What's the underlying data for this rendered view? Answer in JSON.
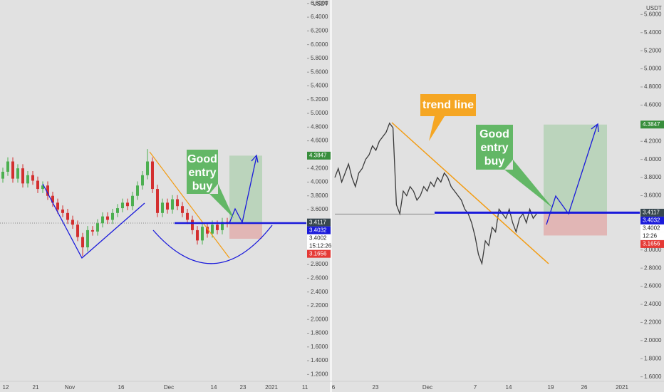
{
  "chart_data": [
    {
      "type": "candlestick",
      "axis_unit": "USDT",
      "open": [
        4.05,
        4.15,
        4.3,
        4.05,
        4.2,
        3.98,
        4.1,
        4.02,
        3.9,
        3.95,
        3.8,
        3.7,
        3.6,
        3.55,
        3.45,
        3.38,
        3.2,
        3.05,
        3.3,
        3.28,
        3.4,
        3.5,
        3.45,
        3.55,
        3.62,
        3.7,
        3.65,
        3.8,
        3.95,
        4.1,
        4.3,
        3.9,
        3.55,
        3.7,
        3.6,
        3.75,
        3.65,
        3.55,
        3.45,
        3.3,
        3.15,
        3.35,
        3.25,
        3.38,
        3.3,
        3.42
      ],
      "high": [
        4.21,
        4.36,
        4.36,
        4.26,
        4.26,
        4.16,
        4.16,
        4.08,
        4.01,
        4.01,
        3.86,
        3.76,
        3.66,
        3.61,
        3.51,
        3.44,
        3.26,
        3.36,
        3.36,
        3.46,
        3.56,
        3.56,
        3.61,
        3.68,
        3.76,
        3.76,
        3.86,
        4.01,
        4.16,
        4.48,
        4.36,
        3.96,
        3.76,
        3.76,
        3.81,
        3.81,
        3.71,
        3.61,
        3.51,
        3.36,
        3.41,
        3.41,
        3.44,
        3.44,
        3.48,
        3.48
      ],
      "low": [
        3.99,
        4.09,
        3.99,
        3.99,
        3.92,
        3.92,
        3.96,
        3.84,
        3.84,
        3.74,
        3.64,
        3.54,
        3.49,
        3.39,
        3.32,
        3.14,
        2.92,
        2.99,
        3.22,
        3.22,
        3.34,
        3.39,
        3.39,
        3.49,
        3.56,
        3.59,
        3.59,
        3.74,
        3.89,
        4.04,
        3.84,
        3.49,
        3.49,
        3.54,
        3.54,
        3.59,
        3.49,
        3.39,
        3.24,
        3.09,
        3.09,
        3.19,
        3.19,
        3.24,
        3.24,
        3.34
      ],
      "close": [
        4.15,
        4.3,
        4.05,
        4.2,
        3.98,
        4.1,
        4.02,
        3.9,
        3.95,
        3.8,
        3.7,
        3.6,
        3.55,
        3.45,
        3.38,
        3.2,
        3.05,
        3.3,
        3.28,
        3.4,
        3.5,
        3.45,
        3.55,
        3.62,
        3.7,
        3.65,
        3.8,
        3.95,
        4.1,
        4.3,
        3.9,
        3.55,
        3.7,
        3.6,
        3.75,
        3.65,
        3.55,
        3.45,
        3.3,
        3.15,
        3.35,
        3.25,
        3.38,
        3.3,
        3.42,
        3.4032
      ],
      "up_color": "#4caf50",
      "down_color": "#d32f2f",
      "ylim": [
        1.1,
        6.65
      ],
      "yticks": [
        {
          "value": 6.6,
          "label": "6.6000"
        },
        {
          "value": 6.4,
          "label": "6.4000"
        },
        {
          "value": 6.2,
          "label": "6.2000"
        },
        {
          "value": 6.0,
          "label": "6.0000"
        },
        {
          "value": 5.8,
          "label": "5.8000"
        },
        {
          "value": 5.6,
          "label": "5.6000"
        },
        {
          "value": 5.4,
          "label": "5.4000"
        },
        {
          "value": 5.2,
          "label": "5.2000"
        },
        {
          "value": 5.0,
          "label": "5.0000"
        },
        {
          "value": 4.8,
          "label": "4.8000"
        },
        {
          "value": 4.6,
          "label": "4.6000"
        },
        {
          "value": 4.2,
          "label": "4.2000"
        },
        {
          "value": 4.0,
          "label": "4.0000"
        },
        {
          "value": 3.8,
          "label": "3.8000"
        },
        {
          "value": 3.6,
          "label": "3.6000"
        },
        {
          "value": 2.8,
          "label": "2.8000"
        },
        {
          "value": 2.6,
          "label": "2.6000"
        },
        {
          "value": 2.4,
          "label": "2.4000"
        },
        {
          "value": 2.2,
          "label": "2.2000"
        },
        {
          "value": 2.0,
          "label": "2.0000"
        },
        {
          "value": 1.8,
          "label": "1.8000"
        },
        {
          "value": 1.6,
          "label": "1.6000"
        },
        {
          "value": 1.4,
          "label": "1.4000"
        },
        {
          "value": 1.2,
          "label": "1.2000"
        }
      ],
      "x_labels": [
        "12",
        "21",
        "Nov",
        "16",
        "Dec",
        "14",
        "23",
        "2021",
        "11"
      ],
      "markers": [
        4.3847,
        3.4117,
        3.4032,
        3.4002,
        3.1656
      ],
      "marker_colors": [
        "#388e3c",
        "#37474f",
        "#1a1adb",
        "#ffffff",
        "#e53935"
      ],
      "countdown": "15:12:26",
      "callout_lines": [
        "Good",
        "entry",
        "buy"
      ]
    },
    {
      "type": "line",
      "axis_unit": "USDT",
      "color": "#3a3a3a",
      "values": [
        3.8,
        3.9,
        3.75,
        3.85,
        3.95,
        3.8,
        3.7,
        3.85,
        3.9,
        4.0,
        4.05,
        4.15,
        4.1,
        4.2,
        4.25,
        4.3,
        4.4,
        4.35,
        3.5,
        3.4,
        3.65,
        3.6,
        3.7,
        3.65,
        3.55,
        3.6,
        3.7,
        3.65,
        3.75,
        3.7,
        3.8,
        3.75,
        3.85,
        3.8,
        3.7,
        3.65,
        3.6,
        3.55,
        3.45,
        3.4,
        3.3,
        3.15,
        2.95,
        2.85,
        3.1,
        3.05,
        3.25,
        3.2,
        3.45,
        3.4,
        3.35,
        3.45,
        3.3,
        3.2,
        3.35,
        3.4,
        3.3,
        3.45,
        3.35,
        3.4
      ],
      "ylim": [
        1.55,
        5.76
      ],
      "yticks": [
        {
          "value": 5.6,
          "label": "5.6000"
        },
        {
          "value": 5.4,
          "label": "5.4000"
        },
        {
          "value": 5.2,
          "label": "5.2000"
        },
        {
          "value": 5.0,
          "label": "5.0000"
        },
        {
          "value": 4.8,
          "label": "4.8000"
        },
        {
          "value": 4.6,
          "label": "4.6000"
        },
        {
          "value": 4.2,
          "label": "4.2000"
        },
        {
          "value": 4.0,
          "label": "4.0000"
        },
        {
          "value": 3.8,
          "label": "3.8000"
        },
        {
          "value": 3.6,
          "label": "3.6000"
        },
        {
          "value": 3.0,
          "label": "3.0000"
        },
        {
          "value": 2.8,
          "label": "2.8000"
        },
        {
          "value": 2.6,
          "label": "2.6000"
        },
        {
          "value": 2.4,
          "label": "2.4000"
        },
        {
          "value": 2.2,
          "label": "2.2000"
        },
        {
          "value": 2.0,
          "label": "2.0000"
        },
        {
          "value": 1.8,
          "label": "1.8000"
        },
        {
          "value": 1.6,
          "label": "1.6000"
        }
      ],
      "x_labels": [
        "6",
        "23",
        "Dec",
        "7",
        "14",
        "19",
        "26",
        "2021"
      ],
      "markers": [
        4.3847,
        3.4117,
        3.4032,
        3.4002,
        3.1656
      ],
      "marker_colors": [
        "#388e3c",
        "#37474f",
        "#1a1adb",
        "#ffffff",
        "#e53935"
      ],
      "countdown": "12:26",
      "callout_lines": [
        "Good",
        "entry",
        "buy"
      ],
      "trend_label": "trend line"
    }
  ]
}
